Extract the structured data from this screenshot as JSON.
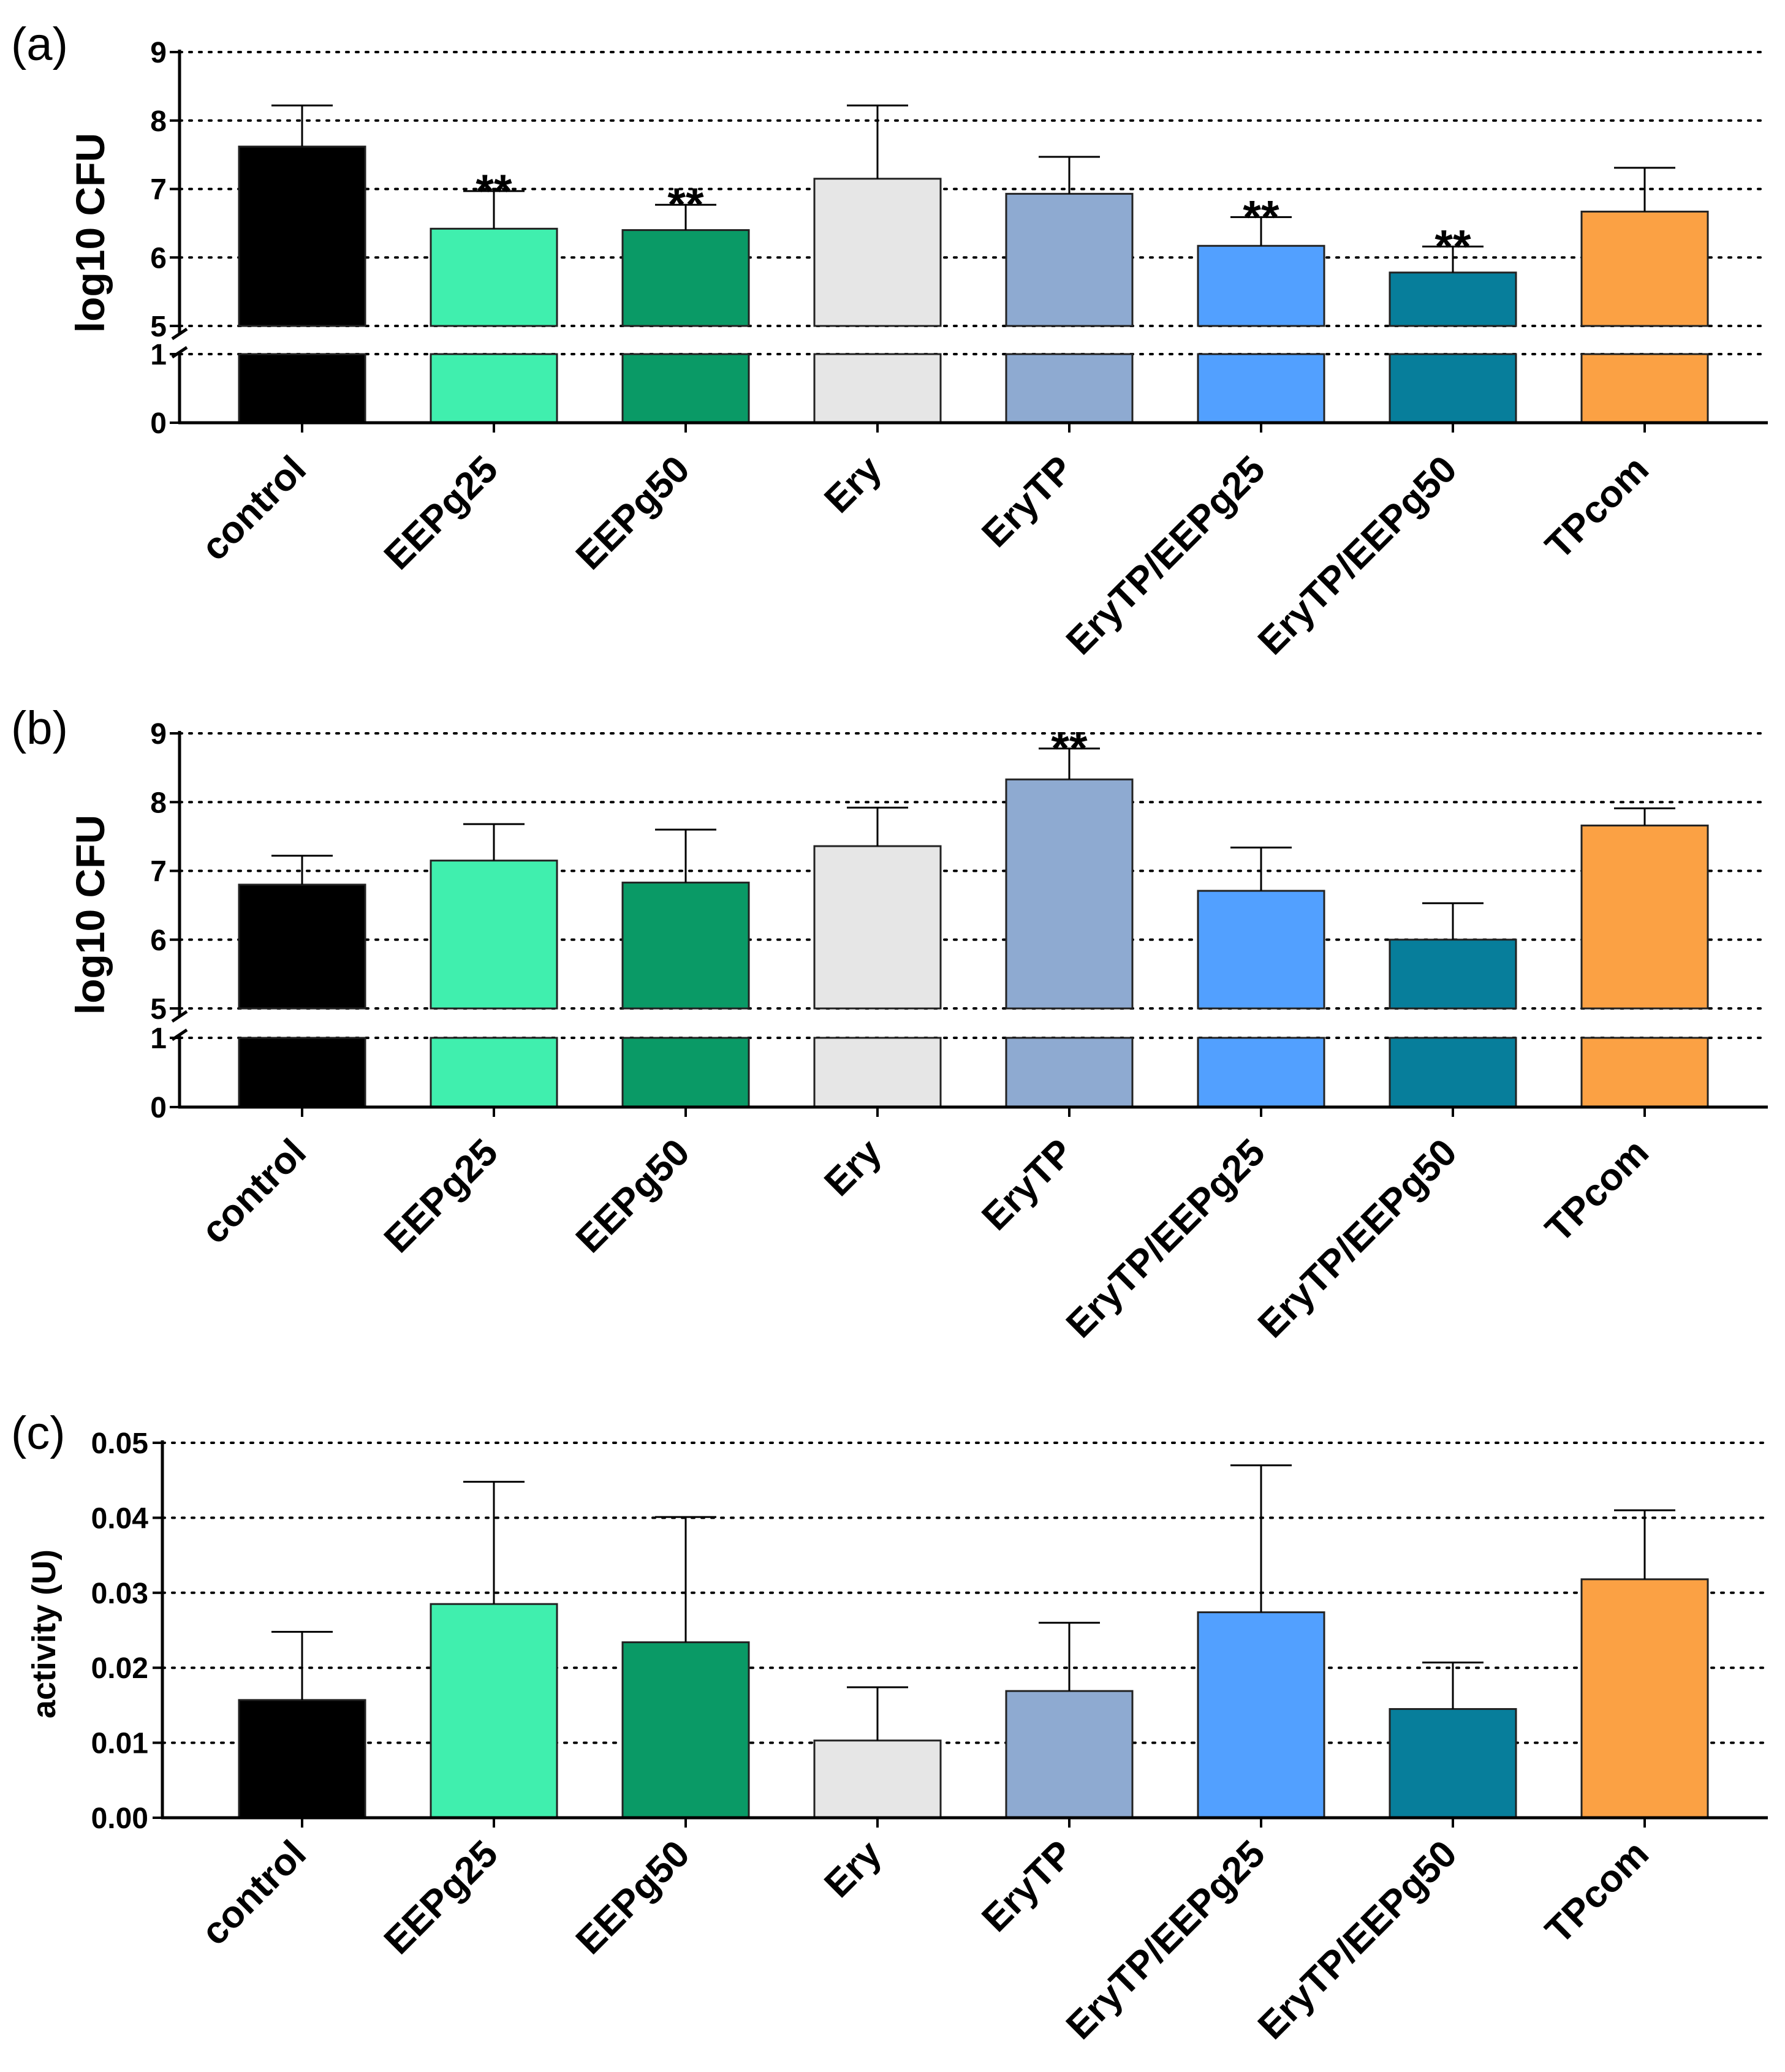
{
  "chart_data": [
    {
      "type": "bar",
      "panel_label": "(a)",
      "title": "",
      "xlabel": "",
      "ylabel": "log10 CFU",
      "axis_break": {
        "lower": [
          0,
          1
        ],
        "upper": [
          5,
          9
        ]
      },
      "yticks": [
        "0",
        "1",
        "5",
        "6",
        "7",
        "8",
        "9"
      ],
      "grid": "dotted horizontal",
      "categories": [
        "control",
        "EEPg25",
        "EEPg50",
        "Ery",
        "EryTP",
        "EryTP/EEPg25",
        "EryTP/EEPg50",
        "TPcom"
      ],
      "colors": [
        "#000000",
        "#40efae",
        "#0a9a66",
        "#e6e6e6",
        "#8eaad1",
        "#52a0ff",
        "#077e9b",
        "#fba144"
      ],
      "values": [
        7.62,
        6.42,
        6.4,
        7.15,
        6.93,
        6.17,
        5.78,
        6.67
      ],
      "error": [
        0.6,
        0.55,
        0.37,
        1.07,
        0.54,
        0.42,
        0.38,
        0.64
      ],
      "significance": [
        "",
        "**",
        "**",
        "",
        "",
        "**",
        "**",
        ""
      ]
    },
    {
      "type": "bar",
      "panel_label": "(b)",
      "title": "",
      "xlabel": "",
      "ylabel": "log10 CFU",
      "axis_break": {
        "lower": [
          0,
          1
        ],
        "upper": [
          5,
          9
        ]
      },
      "yticks": [
        "0",
        "1",
        "5",
        "6",
        "7",
        "8",
        "9"
      ],
      "grid": "dotted horizontal",
      "categories": [
        "control",
        "EEPg25",
        "EEPg50",
        "Ery",
        "EryTP",
        "EryTP/EEPg25",
        "EryTP/EEPg50",
        "TPcom"
      ],
      "colors": [
        "#000000",
        "#40efae",
        "#0a9a66",
        "#e6e6e6",
        "#8eaad1",
        "#52a0ff",
        "#077e9b",
        "#fba144"
      ],
      "values": [
        6.8,
        7.15,
        6.83,
        7.36,
        8.33,
        6.71,
        6.0,
        7.66
      ],
      "error": [
        0.42,
        0.53,
        0.77,
        0.56,
        0.45,
        0.63,
        0.53,
        0.25
      ],
      "significance": [
        "",
        "",
        "",
        "",
        "**",
        "",
        "",
        ""
      ]
    },
    {
      "type": "bar",
      "panel_label": "(c)",
      "title": "",
      "xlabel": "",
      "ylabel": "activity (U)",
      "ylim": [
        0,
        0.05
      ],
      "yticks": [
        "0.00",
        "0.01",
        "0.02",
        "0.03",
        "0.04",
        "0.05"
      ],
      "grid": "dotted horizontal",
      "categories": [
        "control",
        "EEPg25",
        "EEPg50",
        "Ery",
        "EryTP",
        "EryTP/EEPg25",
        "EryTP/EEPg50",
        "TPcom"
      ],
      "colors": [
        "#000000",
        "#40efae",
        "#0a9a66",
        "#e6e6e6",
        "#8eaad1",
        "#52a0ff",
        "#077e9b",
        "#fba144"
      ],
      "values": [
        0.0157,
        0.0285,
        0.0234,
        0.0103,
        0.0169,
        0.0274,
        0.0145,
        0.0318
      ],
      "error": [
        0.0091,
        0.0163,
        0.0167,
        0.0071,
        0.0091,
        0.0196,
        0.0062,
        0.0092
      ],
      "significance": [
        "",
        "",
        "",
        "",
        "",
        "",
        "",
        ""
      ]
    }
  ]
}
